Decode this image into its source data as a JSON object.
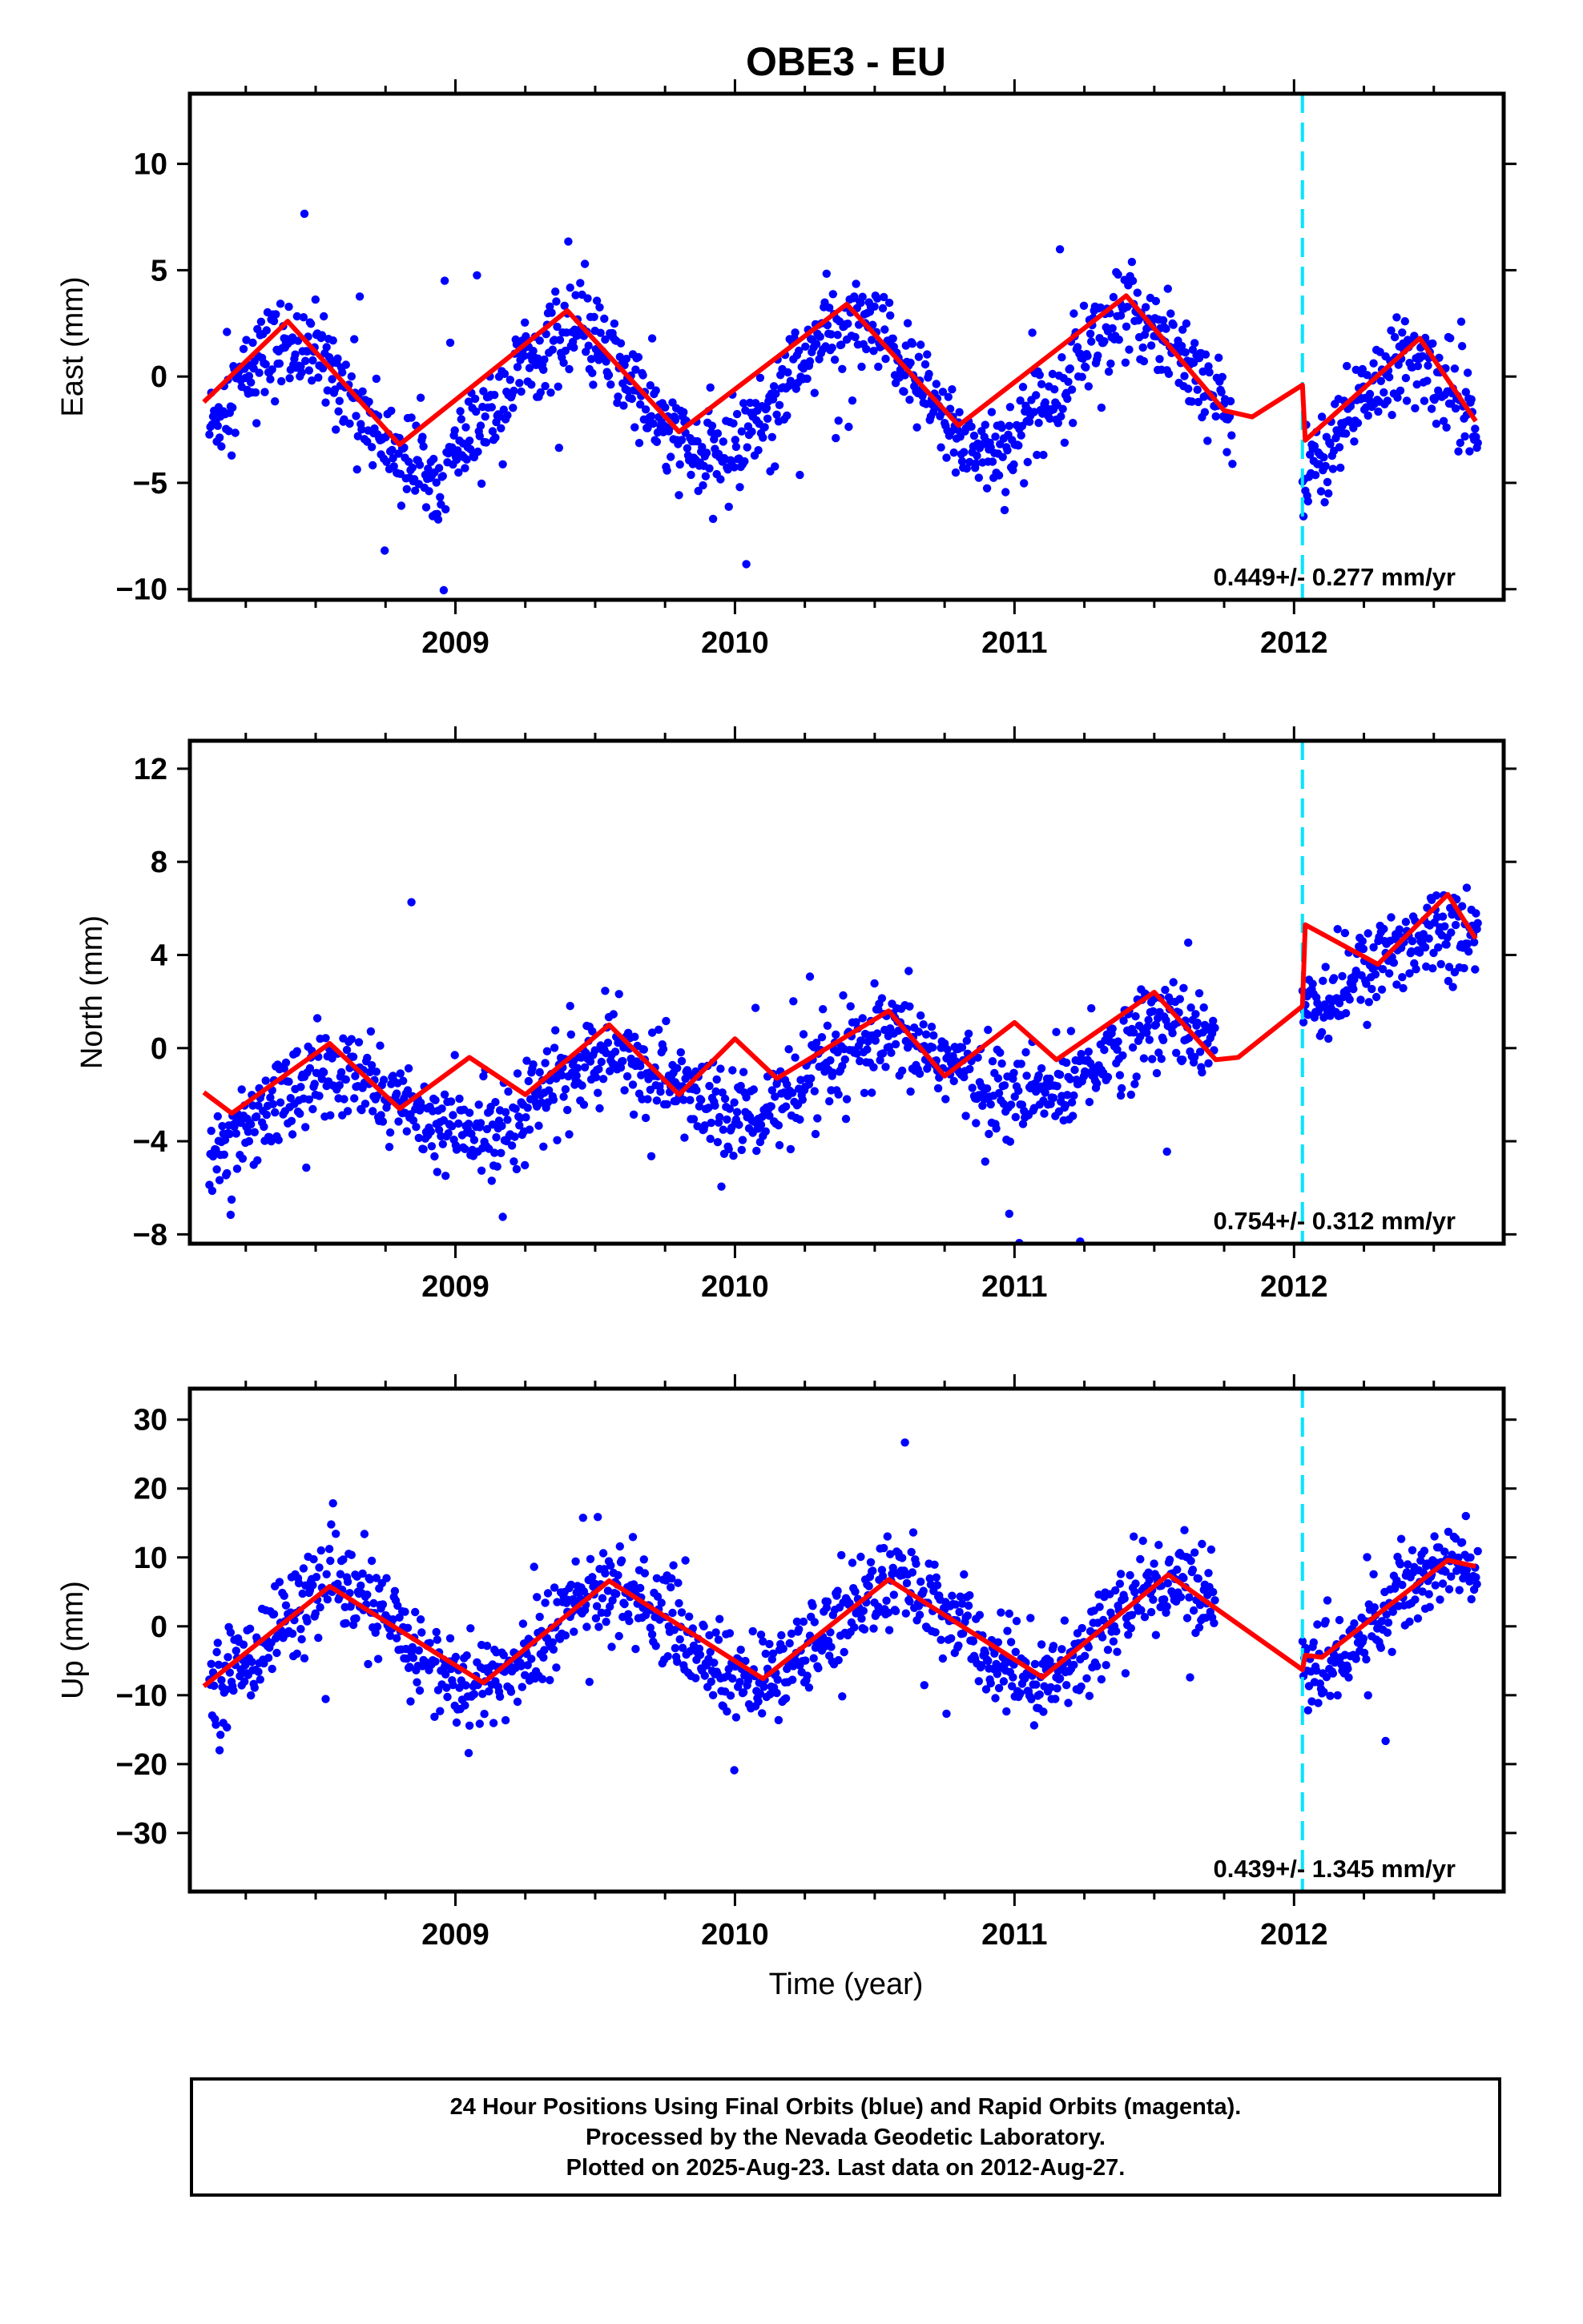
{
  "title": "OBE3 - EU",
  "xlabel": "Time (year)",
  "footer": {
    "line1": "24 Hour Positions Using Final Orbits (blue) and Rapid Orbits (magenta).",
    "line2": "Processed by the Nevada Geodetic Laboratory.",
    "line3": "Plotted on 2025-Aug-23. Last data on 2012-Aug-27."
  },
  "colors": {
    "data": "#0000ff",
    "model": "#ff0000",
    "event_line": "#00e5ff",
    "frame": "#000000"
  },
  "chart_data": [
    {
      "type": "scatter",
      "ylabel": "East (mm)",
      "rate_label": "0.449+/- 0.277 mm/yr",
      "xlim": [
        2008.05,
        2012.75
      ],
      "ylim": [
        -10.5,
        13.3
      ],
      "xticks": [
        2009,
        2010,
        2011,
        2012
      ],
      "yticks": [
        -10,
        -5,
        0,
        5,
        10
      ],
      "event_line_x": 2012.03,
      "model": {
        "offset": -0.8,
        "amplitude": 3.0,
        "rate": 0.449,
        "phase_year": 0.41,
        "pre_gap_end": 2011.78,
        "gap_end": 2012.03,
        "post_jump": -2.7
      },
      "series": [
        {
          "type": "line",
          "x": [
            2008.1,
            2008.4,
            2008.8,
            2009.4,
            2009.8,
            2010.4,
            2010.8,
            2011.4,
            2011.75,
            2011.85,
            2012.03,
            2012.04,
            2012.45,
            2012.65
          ],
          "y": [
            -1.2,
            2.6,
            -3.2,
            3.1,
            -2.6,
            3.4,
            -2.3,
            3.8,
            -1.6,
            -1.9,
            -0.4,
            -3.0,
            1.8,
            -2.1
          ]
        }
      ]
    },
    {
      "type": "scatter",
      "ylabel": "North (mm)",
      "rate_label": "0.754+/- 0.312 mm/yr",
      "xlim": [
        2008.05,
        2012.75
      ],
      "ylim": [
        -8.4,
        13.2
      ],
      "xticks": [
        2009,
        2010,
        2011,
        2012
      ],
      "yticks": [
        -8,
        -4,
        0,
        4,
        8,
        12
      ],
      "event_line_x": 2012.03,
      "model": {
        "offset": -1.5,
        "amplitude": 1.4,
        "rate": 0.754,
        "phase_year": 0.55,
        "pre_gap_end": 2011.72,
        "gap_end": 2012.03,
        "post_jump": 3.4
      },
      "series": [
        {
          "type": "line",
          "x": [
            2008.1,
            2008.2,
            2008.55,
            2008.8,
            2009.05,
            2009.25,
            2009.55,
            2009.8,
            2010.0,
            2010.15,
            2010.55,
            2010.75,
            2011.0,
            2011.15,
            2011.5,
            2011.72,
            2011.8,
            2012.03,
            2012.04,
            2012.3,
            2012.55,
            2012.65
          ],
          "y": [
            -1.9,
            -2.8,
            0.2,
            -2.6,
            -0.4,
            -2.0,
            1.0,
            -2.0,
            0.4,
            -1.3,
            1.6,
            -1.2,
            1.1,
            -0.5,
            2.4,
            -0.5,
            -0.4,
            1.8,
            5.3,
            3.6,
            6.6,
            4.7
          ]
        }
      ]
    },
    {
      "type": "scatter",
      "ylabel": "Up (mm)",
      "rate_label": "0.439+/- 1.345 mm/yr",
      "xlim": [
        2008.05,
        2012.75
      ],
      "ylim": [
        -38.5,
        34.5
      ],
      "xticks": [
        2009,
        2010,
        2011,
        2012
      ],
      "yticks": [
        -30,
        -20,
        -10,
        0,
        10,
        20,
        30
      ],
      "event_line_x": 2012.03,
      "model": {
        "offset": -1.2,
        "amplitude": 7.0,
        "rate": 0.439,
        "phase_year": 0.57,
        "pre_gap_end": 2011.72,
        "gap_end": 2012.03,
        "post_jump": 1.8
      },
      "series": [
        {
          "type": "line",
          "x": [
            2008.1,
            2008.55,
            2009.1,
            2009.55,
            2010.1,
            2010.55,
            2011.1,
            2011.55,
            2012.03,
            2012.04,
            2012.1,
            2012.55,
            2012.65
          ],
          "y": [
            -8.7,
            5.8,
            -8.2,
            6.6,
            -7.6,
            6.8,
            -7.4,
            7.5,
            -6.3,
            -4.2,
            -4.5,
            9.6,
            8.7
          ]
        }
      ]
    }
  ]
}
